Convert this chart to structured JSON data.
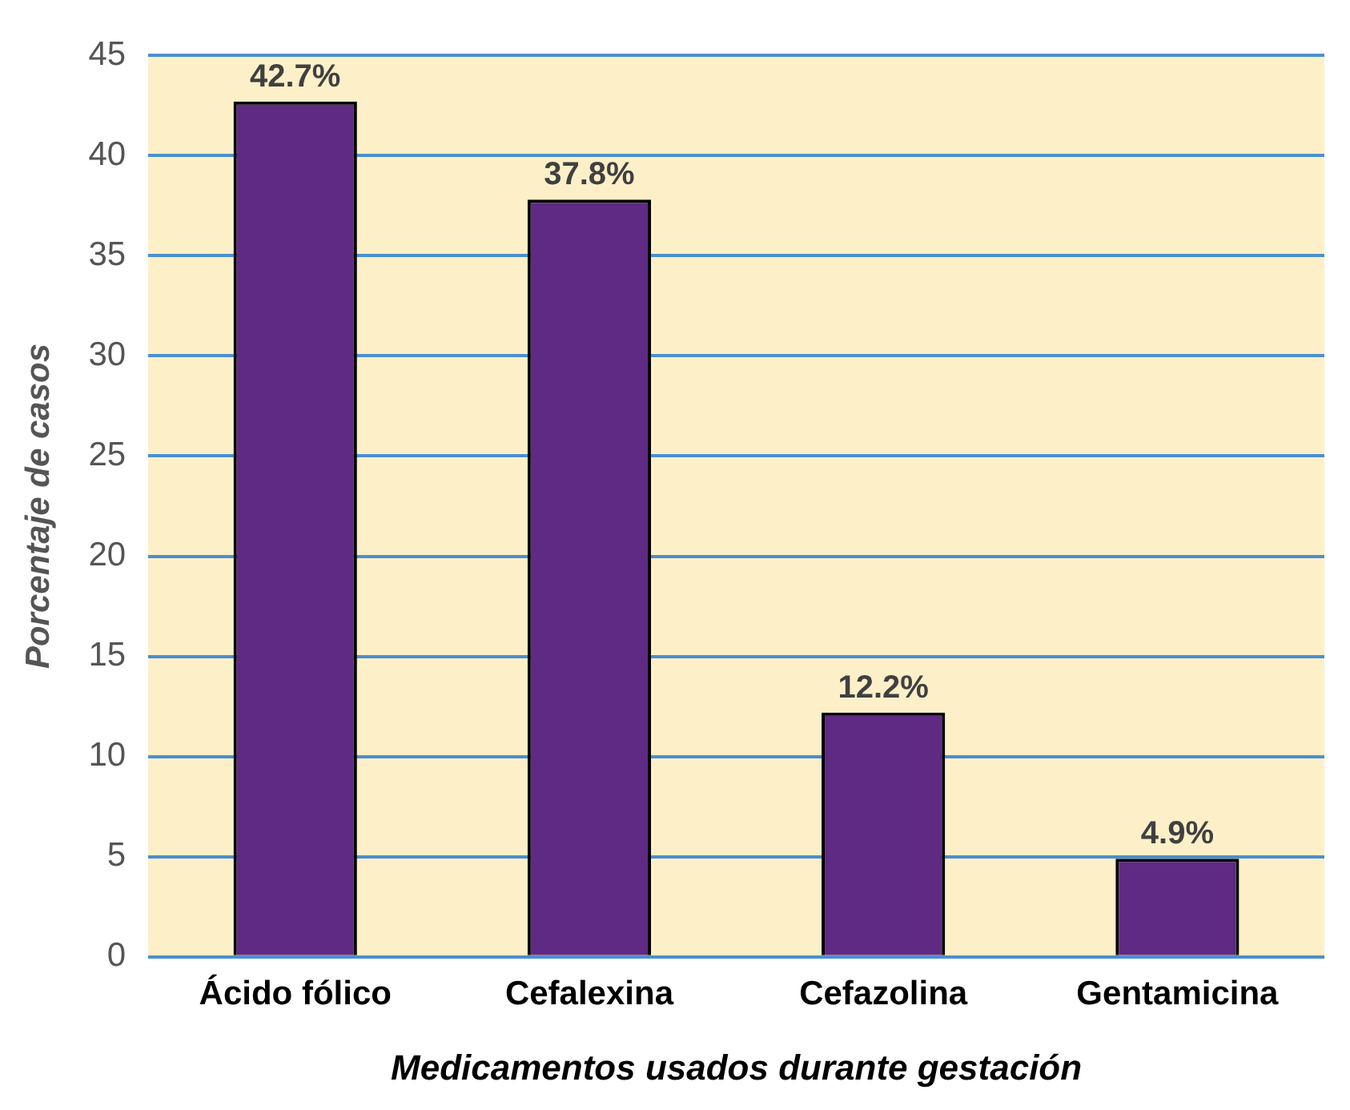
{
  "chart_data": {
    "type": "bar",
    "xlabel": "Medicamentos usados durante gestación",
    "ylabel": "Porcentaje de casos",
    "categories": [
      "Ácido fólico",
      "Cefalexina",
      "Cefazolina",
      "Gentamicina"
    ],
    "values": [
      42.7,
      37.8,
      12.2,
      4.9
    ],
    "value_labels": [
      "42.7%",
      "37.8%",
      "12.2%",
      "4.9%"
    ],
    "color": "#5e2a84",
    "ylim": [
      0,
      45
    ],
    "yticks": [
      0,
      5,
      10,
      15,
      20,
      25,
      30,
      35,
      40,
      45
    ],
    "grid": "y",
    "legend": false
  }
}
